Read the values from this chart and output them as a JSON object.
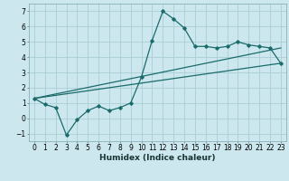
{
  "xlabel": "Humidex (Indice chaleur)",
  "bg_color": "#cce8ee",
  "grid_color": "#aacdd6",
  "line_color": "#1a6b6b",
  "xlim": [
    -0.5,
    23.5
  ],
  "ylim": [
    -1.5,
    7.5
  ],
  "xticks": [
    0,
    1,
    2,
    3,
    4,
    5,
    6,
    7,
    8,
    9,
    10,
    11,
    12,
    13,
    14,
    15,
    16,
    17,
    18,
    19,
    20,
    21,
    22,
    23
  ],
  "yticks": [
    -1,
    0,
    1,
    2,
    3,
    4,
    5,
    6,
    7
  ],
  "series1_x": [
    0,
    1,
    2,
    3,
    4,
    5,
    6,
    7,
    8,
    9,
    10,
    11,
    12,
    13,
    14,
    15,
    16,
    17,
    18,
    19,
    20,
    21,
    22,
    23
  ],
  "series1_y": [
    1.3,
    0.9,
    0.7,
    -1.1,
    -0.1,
    0.5,
    0.8,
    0.5,
    0.7,
    1.0,
    2.7,
    5.1,
    7.0,
    6.5,
    5.9,
    4.7,
    4.7,
    4.6,
    4.7,
    5.0,
    4.8,
    4.7,
    4.6,
    3.6
  ],
  "series2_x": [
    0,
    23
  ],
  "series2_y": [
    1.3,
    3.6
  ],
  "series3_x": [
    0,
    23
  ],
  "series3_y": [
    1.3,
    4.6
  ],
  "xlabel_fontsize": 6.5,
  "tick_fontsize": 5.5
}
